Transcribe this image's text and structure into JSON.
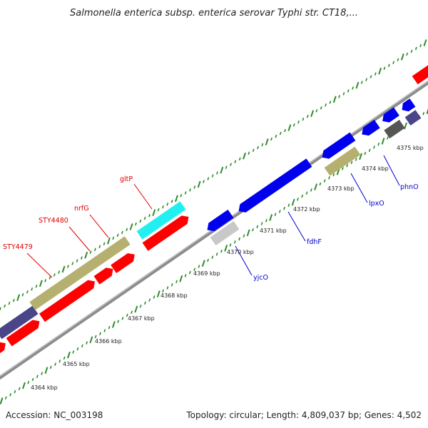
{
  "title": "Salmonella enterica subsp. enterica serovar Typhi str. CT18,...",
  "footer": {
    "accession": "Accession: NC_003198",
    "summary": "Topology: circular; Length: 4,809,037 bp; Genes: 4,502"
  },
  "colors": {
    "backbone": "#8c8c8c",
    "backbone_highlight": "#d0d0d0",
    "tick": "#2e8b2e",
    "forward_label": "#dd0000",
    "reverse_label": "#0000cc",
    "cds_red": "#ff0000",
    "cds_blue": "#0000ee",
    "cds_olive": "#b5b070",
    "cds_slate": "#4a4488",
    "cds_cyan": "#22f0f0",
    "cds_grey": "#c8c8c8",
    "cds_dark": "#555555"
  },
  "tick_labels": [
    "4364 kbp",
    "4365 kbp",
    "4366 kbp",
    "4367 kbp",
    "4368 kbp",
    "4369 kbp",
    "4370 kbp",
    "4371 kbp",
    "4372 kbp",
    "4373 kbp",
    "4374 kbp",
    "4375 kbp"
  ],
  "gene_labels_forward": [
    "gltP",
    "nrfG",
    "STY4480",
    "STY4479"
  ],
  "gene_labels_reverse": [
    "phnO",
    "lpxO",
    "fdhF",
    "yjcO"
  ]
}
